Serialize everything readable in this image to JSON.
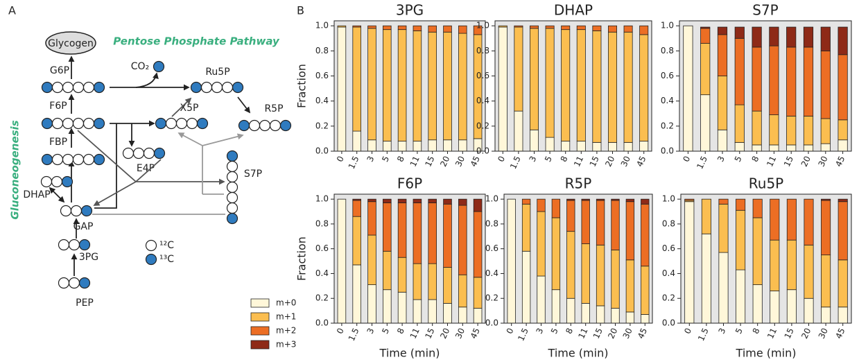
{
  "panel_labels": [
    "A",
    "B"
  ],
  "diagram": {
    "glycogen": "Glycogen",
    "ppp": "Pentose Phosphate Pathway",
    "g6p": "G6P",
    "co2": "CO₂",
    "ru5p": "Ru5P",
    "f6p": "F6P",
    "x5p": "X5P",
    "r5p": "R5P",
    "fbp": "FBP",
    "e4p": "E4P",
    "s7p": "S7P",
    "dhap": "DHAP",
    "gap": "GAP",
    "pg3": "3PG",
    "pep": "PEP",
    "gluconeogenesis": "Gluconeogenesis",
    "c12": "¹²C",
    "c13": "¹³C"
  },
  "chart_data": [
    {
      "type": "stacked_bar",
      "title": "3PG",
      "ylabel": "Fraction",
      "categories": [
        "0",
        "1.5",
        "3",
        "5",
        "8",
        "11",
        "15",
        "20",
        "30",
        "45"
      ],
      "ylim": [
        0,
        1.04
      ],
      "yticks": [
        {
          "value": 0,
          "label": "0.0"
        },
        0.2,
        0.4,
        0.6,
        0.8,
        {
          "value": 1,
          "label": "1.0"
        }
      ],
      "series": [
        {
          "name": "m+0",
          "color": "#fff7d9",
          "values": [
            0.99,
            0.16,
            0.09,
            0.08,
            0.08,
            0.08,
            0.09,
            0.09,
            0.09,
            0.1
          ]
        },
        {
          "name": "m+1",
          "color": "#fbbe50",
          "values": [
            0.01,
            0.83,
            0.89,
            0.89,
            0.89,
            0.88,
            0.86,
            0.86,
            0.85,
            0.83
          ]
        },
        {
          "name": "m+2",
          "color": "#ec6e24",
          "values": [
            0,
            0.01,
            0.02,
            0.03,
            0.03,
            0.04,
            0.05,
            0.05,
            0.06,
            0.07
          ]
        },
        {
          "name": "m+3",
          "color": "#8e2a17",
          "values": [
            0,
            0,
            0,
            0,
            0,
            0,
            0,
            0,
            0,
            0
          ]
        }
      ]
    },
    {
      "type": "stacked_bar",
      "title": "DHAP",
      "categories": [
        "0",
        "1.5",
        "3",
        "5",
        "8",
        "11",
        "15",
        "20",
        "30",
        "45"
      ],
      "ylim": [
        0,
        1.04
      ],
      "yticks": [
        {
          "value": 0,
          "label": "0.0"
        },
        0.2,
        0.4,
        0.6,
        0.8,
        {
          "value": 1,
          "label": "1.0"
        }
      ],
      "series": [
        {
          "name": "m+0",
          "color": "#fff7d9",
          "values": [
            0.99,
            0.32,
            0.17,
            0.11,
            0.08,
            0.08,
            0.07,
            0.07,
            0.07,
            0.08
          ]
        },
        {
          "name": "m+1",
          "color": "#fbbe50",
          "values": [
            0.01,
            0.67,
            0.81,
            0.87,
            0.89,
            0.89,
            0.89,
            0.88,
            0.88,
            0.85
          ]
        },
        {
          "name": "m+2",
          "color": "#ec6e24",
          "values": [
            0,
            0.01,
            0.02,
            0.02,
            0.03,
            0.03,
            0.04,
            0.05,
            0.05,
            0.07
          ]
        },
        {
          "name": "m+3",
          "color": "#8e2a17",
          "values": [
            0,
            0,
            0,
            0,
            0,
            0,
            0,
            0,
            0,
            0
          ]
        }
      ]
    },
    {
      "type": "stacked_bar",
      "title": "S7P",
      "categories": [
        "0",
        "1.5",
        "3",
        "5",
        "8",
        "11",
        "15",
        "20",
        "30",
        "45"
      ],
      "ylim": [
        0,
        1.04
      ],
      "yticks": [
        {
          "value": 0,
          "label": "0.0"
        },
        0.2,
        0.4,
        0.6,
        0.8,
        {
          "value": 1,
          "label": "1.0"
        }
      ],
      "series": [
        {
          "name": "m+0",
          "color": "#fff7d9",
          "values": [
            1.0,
            0.45,
            0.17,
            0.07,
            0.05,
            0.05,
            0.05,
            0.05,
            0.06,
            0.09
          ]
        },
        {
          "name": "m+1",
          "color": "#fbbe50",
          "values": [
            0,
            0.41,
            0.43,
            0.3,
            0.27,
            0.24,
            0.23,
            0.23,
            0.2,
            0.16
          ]
        },
        {
          "name": "m+2",
          "color": "#ec6e24",
          "values": [
            0,
            0.12,
            0.33,
            0.53,
            0.51,
            0.55,
            0.55,
            0.55,
            0.54,
            0.52
          ]
        },
        {
          "name": "m+3",
          "color": "#8e2a17",
          "values": [
            0,
            0.01,
            0.06,
            0.09,
            0.16,
            0.15,
            0.16,
            0.16,
            0.19,
            0.22
          ]
        }
      ]
    },
    {
      "type": "stacked_bar",
      "title": "F6P",
      "ylabel": "Fraction",
      "xlabel": "Time (min)",
      "categories": [
        "0",
        "1.5",
        "3",
        "5",
        "8",
        "11",
        "15",
        "20",
        "30",
        "45"
      ],
      "ylim": [
        0,
        1.04
      ],
      "yticks": [
        {
          "value": 0,
          "label": "0.0"
        },
        0.2,
        0.4,
        0.6,
        0.8,
        {
          "value": 1,
          "label": "1.0"
        }
      ],
      "series": [
        {
          "name": "m+0",
          "color": "#fff7d9",
          "values": [
            1.0,
            0.47,
            0.31,
            0.27,
            0.25,
            0.19,
            0.19,
            0.16,
            0.13,
            0.12
          ]
        },
        {
          "name": "m+1",
          "color": "#fbbe50",
          "values": [
            0,
            0.39,
            0.4,
            0.31,
            0.28,
            0.29,
            0.29,
            0.29,
            0.26,
            0.25
          ]
        },
        {
          "name": "m+2",
          "color": "#ec6e24",
          "values": [
            0,
            0.13,
            0.27,
            0.39,
            0.44,
            0.49,
            0.49,
            0.51,
            0.56,
            0.53
          ]
        },
        {
          "name": "m+3",
          "color": "#8e2a17",
          "values": [
            0,
            0.01,
            0.02,
            0.03,
            0.03,
            0.03,
            0.03,
            0.04,
            0.05,
            0.1
          ]
        }
      ]
    },
    {
      "type": "stacked_bar",
      "title": "R5P",
      "xlabel": "Time (min)",
      "categories": [
        "0",
        "1.5",
        "3",
        "5",
        "8",
        "11",
        "15",
        "20",
        "30",
        "45"
      ],
      "ylim": [
        0,
        1.04
      ],
      "yticks": [
        {
          "value": 0,
          "label": "0.0"
        },
        0.2,
        0.4,
        0.6,
        0.8,
        {
          "value": 1,
          "label": "1.0"
        }
      ],
      "series": [
        {
          "name": "m+0",
          "color": "#fff7d9",
          "values": [
            1.0,
            0.58,
            0.38,
            0.27,
            0.2,
            0.16,
            0.14,
            0.12,
            0.09,
            0.07
          ]
        },
        {
          "name": "m+1",
          "color": "#fbbe50",
          "values": [
            0,
            0.38,
            0.52,
            0.58,
            0.54,
            0.48,
            0.49,
            0.47,
            0.42,
            0.39
          ]
        },
        {
          "name": "m+2",
          "color": "#ec6e24",
          "values": [
            0,
            0.04,
            0.1,
            0.15,
            0.25,
            0.35,
            0.36,
            0.4,
            0.47,
            0.5
          ]
        },
        {
          "name": "m+3",
          "color": "#8e2a17",
          "values": [
            0,
            0,
            0,
            0,
            0.01,
            0.01,
            0.01,
            0.01,
            0.02,
            0.04
          ]
        }
      ]
    },
    {
      "type": "stacked_bar",
      "title": "Ru5P",
      "xlabel": "Time (min)",
      "categories": [
        "0",
        "1.5",
        "3",
        "5",
        "8",
        "11",
        "15",
        "20",
        "30",
        "45"
      ],
      "ylim": [
        0,
        1.04
      ],
      "yticks": [
        {
          "value": 0,
          "label": "0.0"
        },
        0.2,
        0.4,
        0.6,
        0.8,
        {
          "value": 1,
          "label": "1.0"
        }
      ],
      "series": [
        {
          "name": "m+0",
          "color": "#fff7d9",
          "values": [
            0.98,
            0.72,
            0.57,
            0.43,
            0.31,
            0.26,
            0.27,
            0.2,
            0.13,
            0.13
          ]
        },
        {
          "name": "m+1",
          "color": "#fbbe50",
          "values": [
            0.01,
            0.28,
            0.39,
            0.48,
            0.54,
            0.41,
            0.4,
            0.43,
            0.42,
            0.38
          ]
        },
        {
          "name": "m+2",
          "color": "#ec6e24",
          "values": [
            0.01,
            0,
            0.04,
            0.09,
            0.15,
            0.33,
            0.33,
            0.37,
            0.44,
            0.47
          ]
        },
        {
          "name": "m+3",
          "color": "#8e2a17",
          "values": [
            0,
            0,
            0,
            0,
            0,
            0,
            0,
            0,
            0.01,
            0.02
          ]
        }
      ]
    }
  ]
}
